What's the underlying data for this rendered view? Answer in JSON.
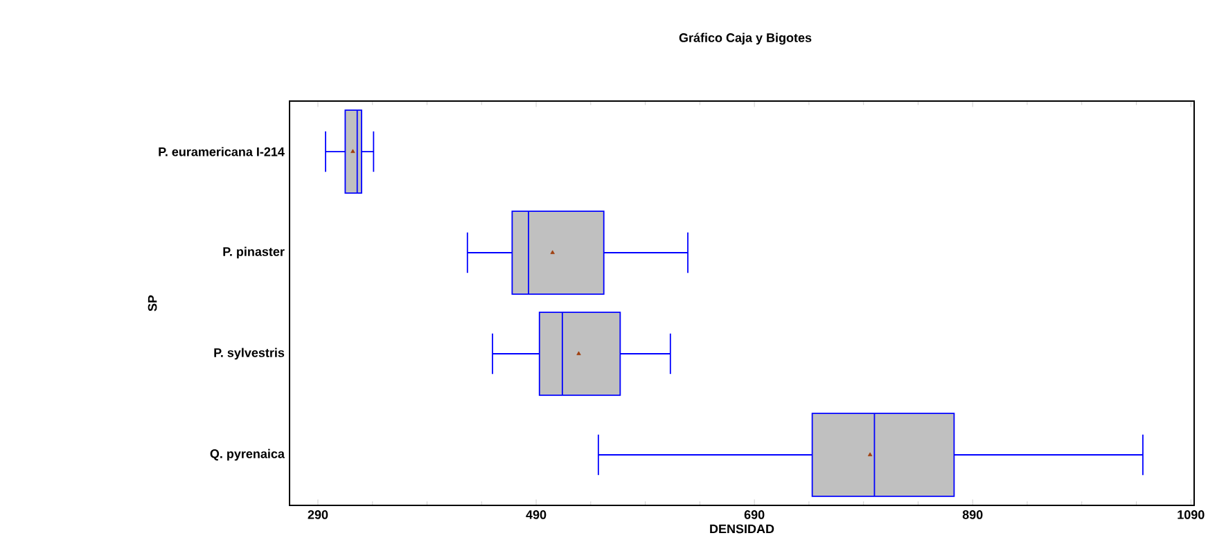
{
  "chart_data": {
    "type": "box",
    "orientation": "horizontal",
    "title": "Gráfico Caja y Bigotes",
    "xlabel": "DENSIDAD",
    "ylabel": "SP",
    "categories": [
      "P. euramericana I-214",
      "P. pinaster",
      "P. sylvestris",
      "Q. pyrenaica"
    ],
    "boxes": [
      {
        "low": 297,
        "q1": 315,
        "median": 326,
        "q3": 330,
        "high": 341,
        "mean": 322
      },
      {
        "low": 427,
        "q1": 468,
        "median": 483,
        "q3": 552,
        "high": 629,
        "mean": 505
      },
      {
        "low": 450,
        "q1": 493,
        "median": 514,
        "q3": 567,
        "high": 613,
        "mean": 529
      },
      {
        "low": 547,
        "q1": 743,
        "median": 800,
        "q3": 873,
        "high": 1046,
        "mean": 796
      }
    ],
    "xlim": [
      264,
      1093
    ],
    "xticks": [
      290,
      490,
      690,
      890,
      1090
    ],
    "grid": false
  }
}
